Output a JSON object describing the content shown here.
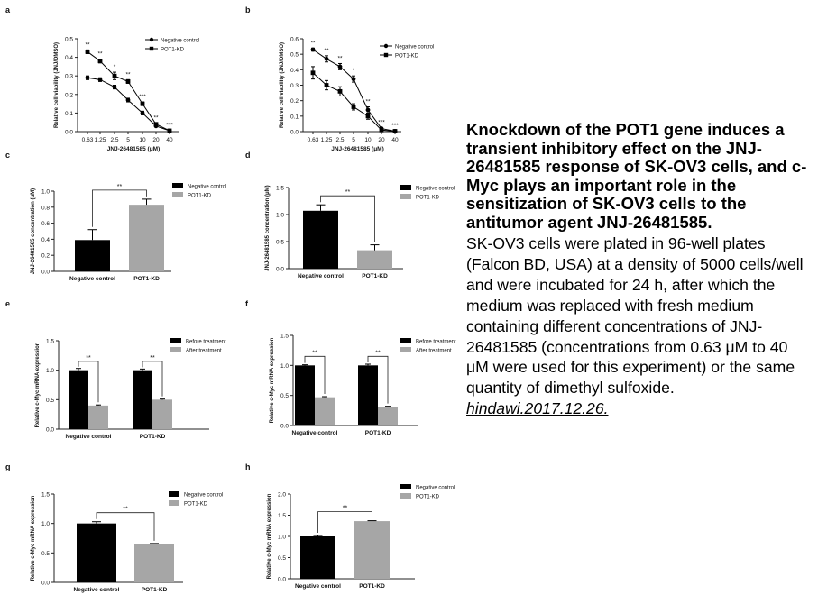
{
  "caption": {
    "title": "Knockdown of the POT1 gene induces a transient inhibitory effect on the JNJ-26481585 response of SK-OV3 cells, and c-Myc plays an important role in the sensitization of SK-OV3 cells to the antitumor agent JNJ-26481585.",
    "body": "SK-OV3 cells were plated in 96-well plates (Falcon BD, USA) at a density of 5000 cells/well and were incubated for 24 h, after which the medium was replaced with fresh medium containing different concentrations of JNJ- 26481585 (concentrations from 0.63 μM to 40 μM were used for this experiment) or the same quantity of dimethyl sulfoxide.",
    "source": "hindawi.2017.12.26."
  },
  "colors": {
    "black": "#000000",
    "gray": "#a6a6a6",
    "axis": "#222222"
  },
  "chart_data": [
    {
      "panel": "a",
      "type": "line",
      "ylabel": "Relative cell viability (JNJ/DMSO)",
      "xlabel": "JNJ-26481585 (μM)",
      "categories": [
        "0.63",
        "1.25",
        "2.5",
        "5",
        "10",
        "20",
        "40"
      ],
      "ylim": [
        0,
        0.5
      ],
      "yticks": [
        "0.0",
        "0.1",
        "0.2",
        "0.3",
        "0.4",
        "0.5"
      ],
      "series": [
        {
          "name": "Negative control",
          "marker": "circle",
          "values": [
            0.29,
            0.28,
            0.24,
            0.17,
            0.1,
            0.03,
            0.005
          ],
          "errors": [
            0.01,
            0.01,
            0.01,
            0.01,
            0.01,
            0.005,
            0.002
          ]
        },
        {
          "name": "POT1-KD",
          "marker": "square",
          "values": [
            0.43,
            0.38,
            0.3,
            0.27,
            0.15,
            0.04,
            0.005
          ],
          "errors": [
            0.01,
            0.01,
            0.02,
            0.01,
            0.01,
            0.005,
            0.002
          ]
        }
      ],
      "annotations": [
        "**",
        "**",
        "*",
        "**",
        "***",
        "**",
        "***"
      ]
    },
    {
      "panel": "b",
      "type": "line",
      "ylabel": "Relative cell viability (JNJ/DMSO)",
      "xlabel": "JNJ-26481585 (μM)",
      "categories": [
        "0.63",
        "1.25",
        "2.5",
        "5",
        "10",
        "20",
        "40"
      ],
      "ylim": [
        0,
        0.6
      ],
      "yticks": [
        "0.0",
        "0.1",
        "0.2",
        "0.3",
        "0.4",
        "0.5",
        "0.6"
      ],
      "series": [
        {
          "name": "Negative control",
          "marker": "circle",
          "values": [
            0.53,
            0.47,
            0.42,
            0.34,
            0.14,
            0.02,
            0.003
          ],
          "errors": [
            0.01,
            0.02,
            0.02,
            0.02,
            0.02,
            0.005,
            0.002
          ]
        },
        {
          "name": "POT1-KD",
          "marker": "square",
          "values": [
            0.38,
            0.3,
            0.26,
            0.16,
            0.1,
            0.01,
            0.003
          ],
          "errors": [
            0.04,
            0.03,
            0.03,
            0.02,
            0.02,
            0.005,
            0.002
          ]
        }
      ],
      "annotations": [
        "**",
        "**",
        "**",
        "*",
        "**",
        "***",
        "***"
      ]
    },
    {
      "panel": "c",
      "type": "bar",
      "ylabel": "JNJ-26481585 concentration (μM)",
      "categories": [
        "Negative control",
        "POT1-KD"
      ],
      "values": [
        0.39,
        0.83
      ],
      "errors": [
        0.13,
        0.07
      ],
      "ylim": [
        0,
        1.0
      ],
      "yticks": [
        "0.0",
        "0.2",
        "0.4",
        "0.6",
        "0.8",
        "1.0"
      ],
      "legend": [
        "Negative control",
        "POT1-KD"
      ],
      "significance": "**"
    },
    {
      "panel": "d",
      "type": "bar",
      "ylabel": "JNJ-26481585 concentration (μM)",
      "categories": [
        "Negative control",
        "POT1-KD"
      ],
      "values": [
        1.07,
        0.34
      ],
      "errors": [
        0.11,
        0.1
      ],
      "ylim": [
        0,
        1.5
      ],
      "yticks": [
        "0.0",
        "0.5",
        "1.0",
        "1.5"
      ],
      "legend": [
        "Negative control",
        "POT1-KD"
      ],
      "significance": "**"
    },
    {
      "panel": "e",
      "type": "bar",
      "ylabel": "Relative c-Myc mRNA expression",
      "categories": [
        "Negative control",
        "POT1-KD"
      ],
      "series": [
        {
          "name": "Before treatment",
          "values": [
            1.0,
            1.0
          ],
          "errors": [
            0.03,
            0.02
          ]
        },
        {
          "name": "After treatment",
          "values": [
            0.4,
            0.5
          ],
          "errors": [
            0.01,
            0.01
          ]
        }
      ],
      "ylim": [
        0,
        1.5
      ],
      "yticks": [
        "0.0",
        "0.5",
        "1.0",
        "1.5"
      ],
      "significance": [
        "**",
        "**"
      ]
    },
    {
      "panel": "f",
      "type": "bar",
      "ylabel": "Relative c-Myc mRNA expression",
      "categories": [
        "Negative control",
        "POT1-KD"
      ],
      "series": [
        {
          "name": "Before treatment",
          "values": [
            1.0,
            1.0
          ],
          "errors": [
            0.01,
            0.02
          ]
        },
        {
          "name": "After treatment",
          "values": [
            0.47,
            0.3
          ],
          "errors": [
            0.01,
            0.02
          ]
        }
      ],
      "ylim": [
        0,
        1.5
      ],
      "yticks": [
        "0.0",
        "0.5",
        "1.0",
        "1.5"
      ],
      "significance": [
        "**",
        "**"
      ]
    },
    {
      "panel": "g",
      "type": "bar",
      "ylabel": "Relative c-Myc mRNA expression",
      "categories": [
        "Negative control",
        "POT1-KD"
      ],
      "values": [
        1.0,
        0.65
      ],
      "errors": [
        0.03,
        0.01
      ],
      "ylim": [
        0,
        1.5
      ],
      "yticks": [
        "0.0",
        "0.5",
        "1.0",
        "1.5"
      ],
      "legend": [
        "Negative control",
        "POT1-KD"
      ],
      "significance": "**"
    },
    {
      "panel": "h",
      "type": "bar",
      "ylabel": "Relative c-Myc mRNA expression",
      "categories": [
        "Negative control",
        "POT1-KD"
      ],
      "values": [
        1.0,
        1.36
      ],
      "errors": [
        0.02,
        0.01
      ],
      "ylim": [
        0,
        2.0
      ],
      "yticks": [
        "0.0",
        "0.5",
        "1.0",
        "1.5",
        "2.0"
      ],
      "legend": [
        "Negative control",
        "POT1-KD"
      ],
      "significance": "**"
    }
  ]
}
